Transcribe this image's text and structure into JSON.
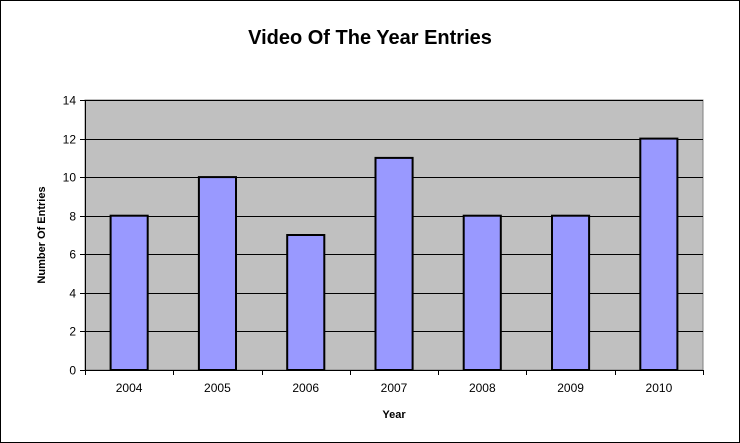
{
  "chart_data": {
    "type": "bar",
    "title": "Video Of The Year Entries",
    "xlabel": "Year",
    "ylabel": "Number Of Entries",
    "categories": [
      "2004",
      "2005",
      "2006",
      "2007",
      "2008",
      "2009",
      "2010"
    ],
    "values": [
      8,
      10,
      7,
      11,
      8,
      8,
      12
    ],
    "ylim": [
      0,
      14
    ],
    "yticks": [
      "0",
      "2",
      "4",
      "6",
      "8",
      "10",
      "12",
      "14"
    ],
    "grid": true,
    "legend": "none",
    "colors": {
      "plot_background": "#c0c0c0",
      "bar_fill": "#9999ff",
      "bar_edge": "#000000",
      "gridline": "#000000"
    }
  }
}
